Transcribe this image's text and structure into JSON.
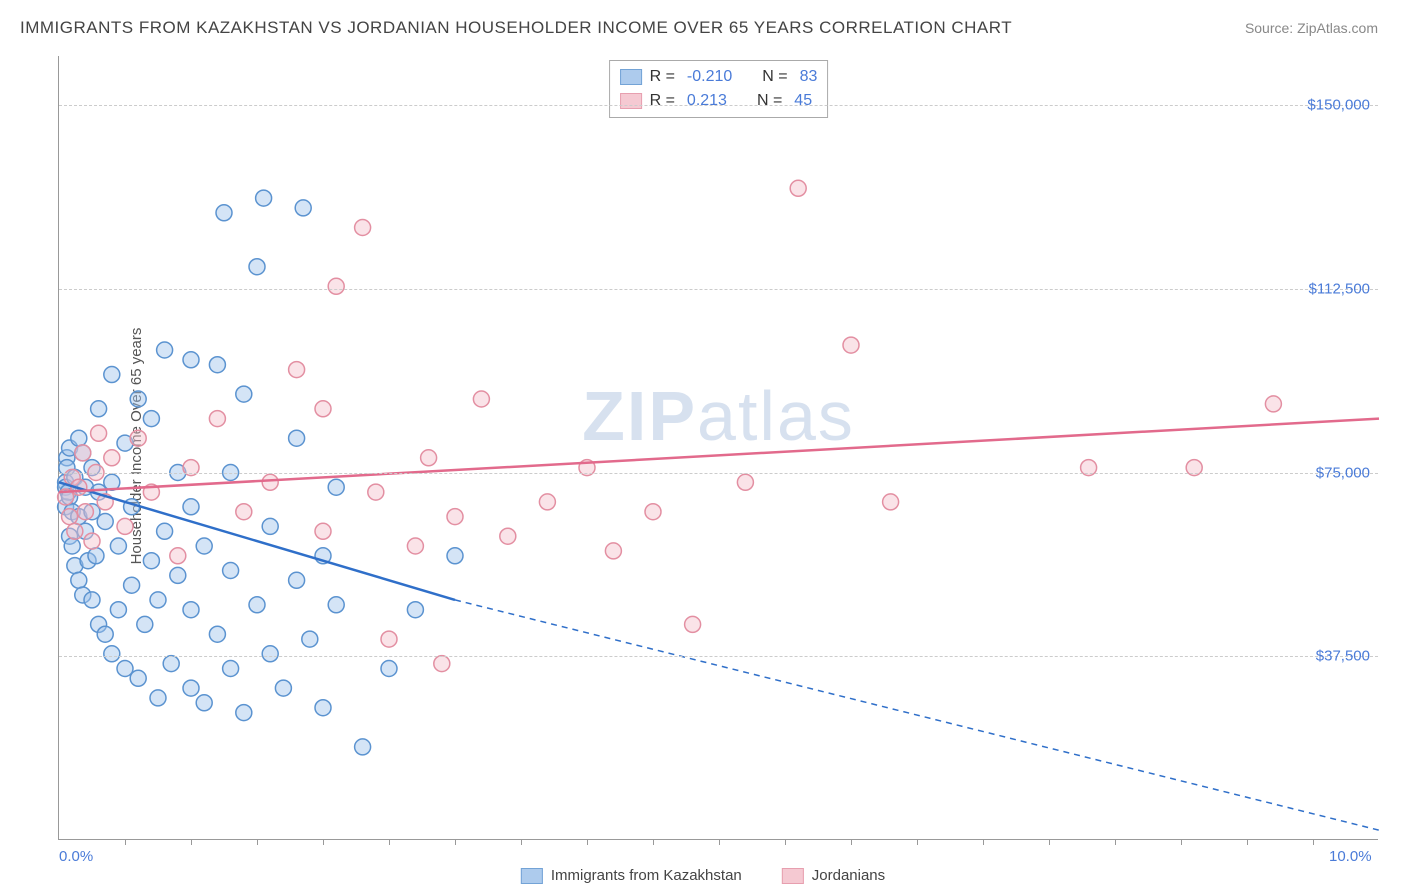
{
  "title": "IMMIGRANTS FROM KAZAKHSTAN VS JORDANIAN HOUSEHOLDER INCOME OVER 65 YEARS CORRELATION CHART",
  "source": "Source: ZipAtlas.com",
  "watermark": "ZIPatlas",
  "watermark_prefix": "ZIP",
  "watermark_suffix": "atlas",
  "ylabel": "Householder Income Over 65 years",
  "chart": {
    "type": "scatter",
    "xlim": [
      0,
      10
    ],
    "ylim": [
      0,
      160000
    ],
    "x_tick_labels": {
      "0": "0.0%",
      "10": "10.0%"
    },
    "x_minor_ticks": [
      0.5,
      1,
      1.5,
      2,
      2.5,
      3,
      3.5,
      4,
      4.5,
      5,
      5.5,
      6,
      6.5,
      7,
      7.5,
      8,
      8.5,
      9,
      9.5
    ],
    "y_grid": [
      {
        "y": 37500,
        "label": "$37,500"
      },
      {
        "y": 75000,
        "label": "$75,000"
      },
      {
        "y": 112500,
        "label": "$112,500"
      },
      {
        "y": 150000,
        "label": "$150,000"
      }
    ],
    "background_color": "#ffffff",
    "grid_color": "#cccccc",
    "axis_color": "#999999",
    "tick_label_color": "#4a7bd8",
    "marker_radius": 8,
    "marker_fill_opacity": 0.45,
    "marker_stroke_width": 1.5,
    "series": [
      {
        "name": "Immigrants from Kazakhstan",
        "color_fill": "#9fc3ea",
        "color_stroke": "#5b93d0",
        "line_color": "#2f6fc9",
        "R": "-0.210",
        "N": "83",
        "trend": {
          "x1": 0,
          "y1": 73000,
          "x2": 3.0,
          "y2": 49000,
          "dash_x2": 10,
          "dash_y2": 2000
        },
        "points": [
          [
            0.05,
            73000
          ],
          [
            0.05,
            68000
          ],
          [
            0.05,
            72000
          ],
          [
            0.06,
            78000
          ],
          [
            0.06,
            76000
          ],
          [
            0.07,
            71000
          ],
          [
            0.08,
            62000
          ],
          [
            0.08,
            70000
          ],
          [
            0.08,
            80000
          ],
          [
            0.1,
            67000
          ],
          [
            0.1,
            60000
          ],
          [
            0.12,
            56000
          ],
          [
            0.12,
            74000
          ],
          [
            0.15,
            53000
          ],
          [
            0.15,
            66000
          ],
          [
            0.15,
            82000
          ],
          [
            0.18,
            50000
          ],
          [
            0.18,
            79000
          ],
          [
            0.2,
            63000
          ],
          [
            0.2,
            72000
          ],
          [
            0.22,
            57000
          ],
          [
            0.25,
            49000
          ],
          [
            0.25,
            67000
          ],
          [
            0.25,
            76000
          ],
          [
            0.28,
            58000
          ],
          [
            0.3,
            44000
          ],
          [
            0.3,
            71000
          ],
          [
            0.3,
            88000
          ],
          [
            0.35,
            42000
          ],
          [
            0.35,
            65000
          ],
          [
            0.4,
            38000
          ],
          [
            0.4,
            73000
          ],
          [
            0.4,
            95000
          ],
          [
            0.45,
            47000
          ],
          [
            0.45,
            60000
          ],
          [
            0.5,
            35000
          ],
          [
            0.5,
            81000
          ],
          [
            0.55,
            52000
          ],
          [
            0.55,
            68000
          ],
          [
            0.6,
            33000
          ],
          [
            0.6,
            90000
          ],
          [
            0.65,
            44000
          ],
          [
            0.7,
            57000
          ],
          [
            0.7,
            86000
          ],
          [
            0.75,
            29000
          ],
          [
            0.75,
            49000
          ],
          [
            0.8,
            63000
          ],
          [
            0.8,
            100000
          ],
          [
            0.85,
            36000
          ],
          [
            0.9,
            54000
          ],
          [
            0.9,
            75000
          ],
          [
            1.0,
            31000
          ],
          [
            1.0,
            47000
          ],
          [
            1.0,
            68000
          ],
          [
            1.0,
            98000
          ],
          [
            1.1,
            28000
          ],
          [
            1.1,
            60000
          ],
          [
            1.2,
            42000
          ],
          [
            1.2,
            97000
          ],
          [
            1.25,
            128000
          ],
          [
            1.3,
            35000
          ],
          [
            1.3,
            55000
          ],
          [
            1.3,
            75000
          ],
          [
            1.4,
            26000
          ],
          [
            1.4,
            91000
          ],
          [
            1.5,
            48000
          ],
          [
            1.5,
            117000
          ],
          [
            1.55,
            131000
          ],
          [
            1.6,
            38000
          ],
          [
            1.6,
            64000
          ],
          [
            1.7,
            31000
          ],
          [
            1.8,
            53000
          ],
          [
            1.8,
            82000
          ],
          [
            1.85,
            129000
          ],
          [
            1.9,
            41000
          ],
          [
            2.0,
            27000
          ],
          [
            2.0,
            58000
          ],
          [
            2.1,
            48000
          ],
          [
            2.1,
            72000
          ],
          [
            2.3,
            19000
          ],
          [
            2.5,
            35000
          ],
          [
            2.7,
            47000
          ],
          [
            3.0,
            58000
          ]
        ]
      },
      {
        "name": "Jordanians",
        "color_fill": "#f4c0cb",
        "color_stroke": "#e38fa2",
        "line_color": "#e26a8c",
        "R": "0.213",
        "N": "45",
        "trend": {
          "x1": 0,
          "y1": 71000,
          "x2": 10,
          "y2": 86000
        },
        "points": [
          [
            0.05,
            70000
          ],
          [
            0.08,
            66000
          ],
          [
            0.1,
            74000
          ],
          [
            0.12,
            63000
          ],
          [
            0.15,
            72000
          ],
          [
            0.18,
            79000
          ],
          [
            0.2,
            67000
          ],
          [
            0.25,
            61000
          ],
          [
            0.28,
            75000
          ],
          [
            0.3,
            83000
          ],
          [
            0.35,
            69000
          ],
          [
            0.4,
            78000
          ],
          [
            0.5,
            64000
          ],
          [
            0.6,
            82000
          ],
          [
            0.7,
            71000
          ],
          [
            0.9,
            58000
          ],
          [
            1.0,
            76000
          ],
          [
            1.2,
            86000
          ],
          [
            1.4,
            67000
          ],
          [
            1.6,
            73000
          ],
          [
            1.8,
            96000
          ],
          [
            2.0,
            63000
          ],
          [
            2.0,
            88000
          ],
          [
            2.1,
            113000
          ],
          [
            2.3,
            125000
          ],
          [
            2.4,
            71000
          ],
          [
            2.5,
            41000
          ],
          [
            2.7,
            60000
          ],
          [
            2.8,
            78000
          ],
          [
            2.9,
            36000
          ],
          [
            3.0,
            66000
          ],
          [
            3.2,
            90000
          ],
          [
            3.4,
            62000
          ],
          [
            3.7,
            69000
          ],
          [
            4.0,
            76000
          ],
          [
            4.2,
            59000
          ],
          [
            4.5,
            67000
          ],
          [
            4.8,
            44000
          ],
          [
            5.2,
            73000
          ],
          [
            5.6,
            133000
          ],
          [
            6.0,
            101000
          ],
          [
            6.3,
            69000
          ],
          [
            7.8,
            76000
          ],
          [
            8.6,
            76000
          ],
          [
            9.2,
            89000
          ]
        ]
      }
    ]
  },
  "legend_labels": {
    "R": "R =",
    "N": "N ="
  }
}
